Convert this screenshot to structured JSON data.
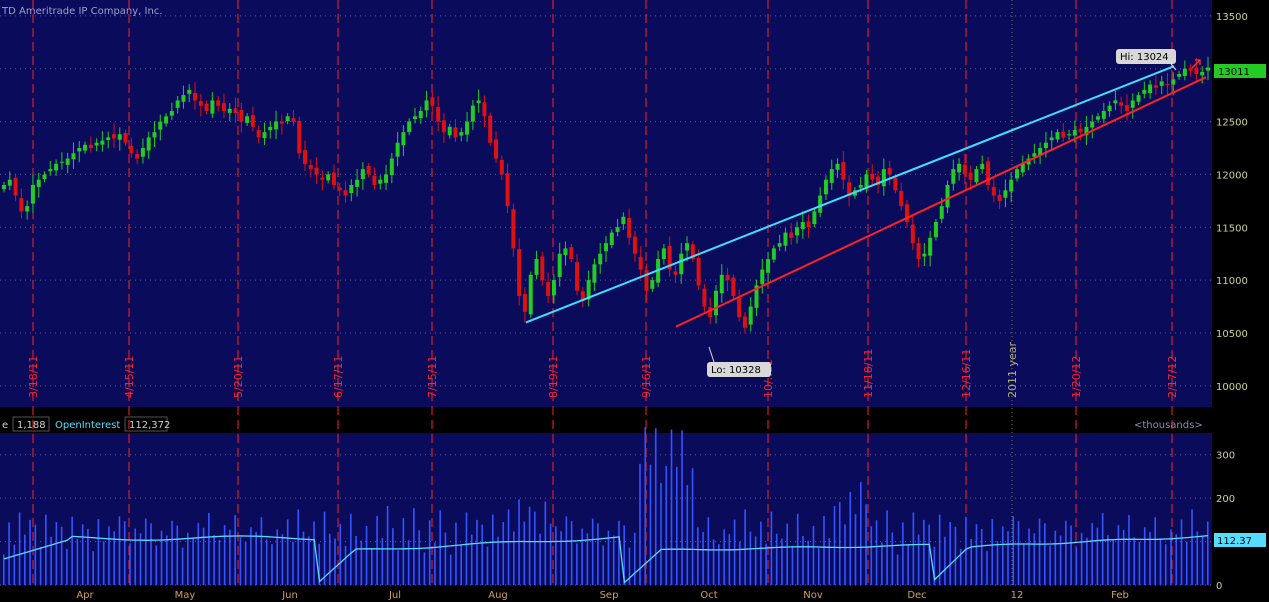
{
  "header": {
    "copyright": "TD Ameritrade IP Company, Inc."
  },
  "colors": {
    "background": "#0b0b5c",
    "up_candle": "#22cc22",
    "down_candle": "#dd1111",
    "upper_trend": "#3fe0ff",
    "lower_trend": "#ff2222",
    "price_axis_text": "#cfcf9a",
    "date_marker": "#ff2222",
    "volume_bar": "#3355ff",
    "open_interest_line": "#55ddff",
    "last_price_badge": "#22cc22"
  },
  "chart_data": [
    {
      "type": "candlestick",
      "title": "",
      "ylim": [
        9800,
        13650
      ],
      "y_ticks": [
        10000,
        10500,
        11000,
        11500,
        12000,
        12500,
        13000,
        13500
      ],
      "date_labels": [
        "3/18/11",
        "4/15/11",
        "5/20/11",
        "6/17/11",
        "7/15/11",
        "8/19/11",
        "9/16/11",
        "10/..11",
        "11/18/11",
        "12/16/11",
        "2011 year",
        "1/20/12",
        "2/17/12"
      ],
      "high_label": "Hi: 13024",
      "low_label": "Lo: 10328",
      "last_price": "13011",
      "closes": [
        11900,
        11950,
        11800,
        11650,
        11700,
        11900,
        11950,
        12000,
        12050,
        12100,
        12120,
        12150,
        12200,
        12250,
        12280,
        12250,
        12300,
        12320,
        12350,
        12340,
        12380,
        12300,
        12200,
        12150,
        12250,
        12350,
        12400,
        12500,
        12550,
        12600,
        12700,
        12750,
        12800,
        12700,
        12650,
        12600,
        12700,
        12650,
        12600,
        12620,
        12580,
        12500,
        12550,
        12450,
        12350,
        12400,
        12450,
        12500,
        12480,
        12550,
        12500,
        12200,
        12100,
        12050,
        12000,
        11950,
        12000,
        11900,
        11850,
        11800,
        11900,
        11950,
        12050,
        12000,
        11900,
        11950,
        12000,
        12150,
        12300,
        12400,
        12500,
        12550,
        12600,
        12700,
        12650,
        12500,
        12400,
        12450,
        12350,
        12400,
        12500,
        12650,
        12700,
        12550,
        12300,
        12150,
        12000,
        11700,
        11300,
        10850,
        10700,
        11050,
        11200,
        11000,
        10850,
        11000,
        11250,
        11300,
        11200,
        10900,
        10800,
        11000,
        11150,
        11250,
        11350,
        11450,
        11500,
        11600,
        11400,
        11250,
        11100,
        10900,
        11000,
        11200,
        11300,
        11100,
        11050,
        11250,
        11350,
        11200,
        10950,
        10750,
        10650,
        10900,
        11050,
        11000,
        10850,
        10650,
        10550,
        10750,
        10950,
        11100,
        11200,
        11300,
        11350,
        11450,
        11400,
        11500,
        11550,
        11500,
        11650,
        11800,
        11950,
        12050,
        12100,
        11950,
        11800,
        11850,
        11900,
        12000,
        11950,
        11900,
        12050,
        12000,
        11850,
        11700,
        11550,
        11350,
        11200,
        11250,
        11400,
        11550,
        11700,
        11900,
        12050,
        12100,
        12000,
        11950,
        12050,
        12100,
        11900,
        11800,
        11750,
        11850,
        11950,
        12050,
        12100,
        12150,
        12200,
        12250,
        12300,
        12350,
        12400,
        12350,
        12380,
        12420,
        12400,
        12450,
        12500,
        12550,
        12600,
        12650,
        12700,
        12650,
        12600,
        12700,
        12750,
        12800,
        12850,
        12820,
        12880,
        12850,
        12900,
        12950,
        13000,
        12980,
        12950,
        12970,
        13011
      ],
      "upper_trendline": {
        "from": [
          10600,
          "8/19/11"
        ],
        "to": [
          13024,
          "2/17/12"
        ]
      },
      "lower_trendline": {
        "from": [
          10560,
          "9/30/11"
        ],
        "to": [
          12920,
          "2/24/12"
        ]
      }
    },
    {
      "type": "bar",
      "legend": {
        "volume_label": "e",
        "volume_value": "1,188",
        "oi_label": "OpenInterest",
        "oi_value": "112,372",
        "units": "<thousands>"
      },
      "ylim": [
        0,
        350
      ],
      "y_ticks": [
        0,
        100,
        200,
        300
      ],
      "month_labels": [
        "Apr",
        "May",
        "Jun",
        "Jul",
        "Aug",
        "Sep",
        "Oct",
        "Nov",
        "Dec",
        "12",
        "Feb"
      ],
      "oi_last": "112.37"
    }
  ]
}
